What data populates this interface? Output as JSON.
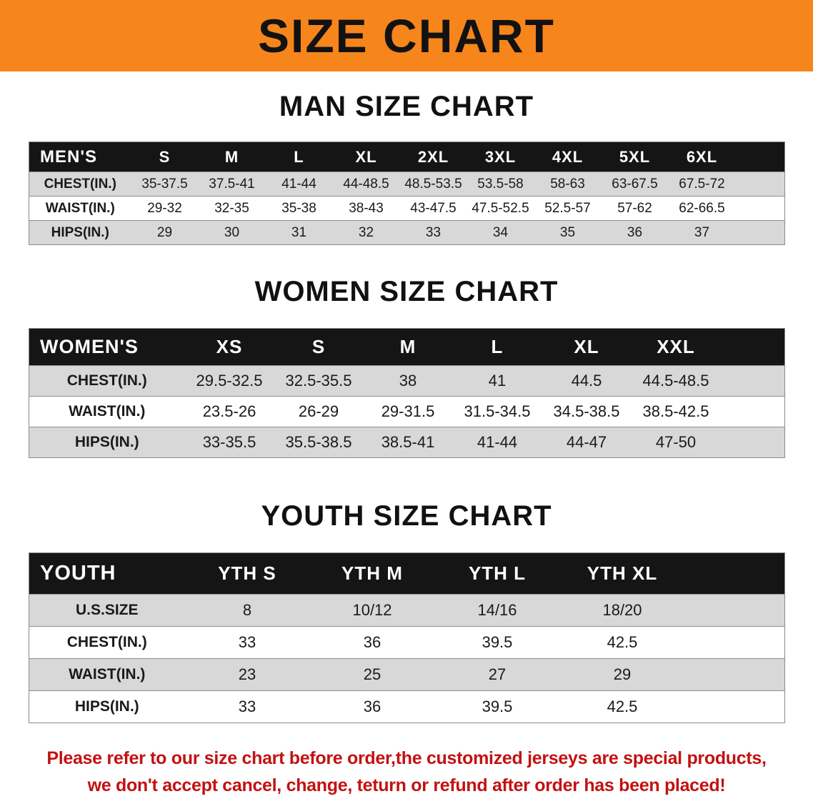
{
  "banner": {
    "title": "SIZE CHART",
    "bg_color": "#F6851C"
  },
  "colors": {
    "banner_orange": "#F6851C",
    "header_black": "#151515",
    "stripe_gray": "#D8D8D8",
    "disclaimer_red": "#C31111"
  },
  "sections": [
    {
      "heading": "MAN SIZE CHART",
      "table": {
        "label": "MEN'S",
        "columns": [
          "S",
          "M",
          "L",
          "XL",
          "2XL",
          "3XL",
          "4XL",
          "5XL",
          "6XL"
        ],
        "rows": [
          {
            "label": "CHEST(IN.)",
            "values": [
              "35-37.5",
              "37.5-41",
              "41-44",
              "44-48.5",
              "48.5-53.5",
              "53.5-58",
              "58-63",
              "63-67.5",
              "67.5-72"
            ]
          },
          {
            "label": "WAIST(IN.)",
            "values": [
              "29-32",
              "32-35",
              "35-38",
              "38-43",
              "43-47.5",
              "47.5-52.5",
              "52.5-57",
              "57-62",
              "62-66.5"
            ]
          },
          {
            "label": "HIPS(IN.)",
            "values": [
              "29",
              "30",
              "31",
              "32",
              "33",
              "34",
              "35",
              "36",
              "37"
            ]
          }
        ]
      }
    },
    {
      "heading": "WOMEN SIZE CHART",
      "table": {
        "label": "WOMEN'S",
        "columns": [
          "XS",
          "S",
          "M",
          "L",
          "XL",
          "XXL"
        ],
        "rows": [
          {
            "label": "CHEST(IN.)",
            "values": [
              "29.5-32.5",
              "32.5-35.5",
              "38",
              "41",
              "44.5",
              "44.5-48.5"
            ]
          },
          {
            "label": "WAIST(IN.)",
            "values": [
              "23.5-26",
              "26-29",
              "29-31.5",
              "31.5-34.5",
              "34.5-38.5",
              "38.5-42.5"
            ]
          },
          {
            "label": "HIPS(IN.)",
            "values": [
              "33-35.5",
              "35.5-38.5",
              "38.5-41",
              "41-44",
              "44-47",
              "47-50"
            ]
          }
        ]
      }
    },
    {
      "heading": "YOUTH SIZE CHART",
      "table": {
        "label": "YOUTH",
        "columns": [
          "YTH S",
          "YTH M",
          "YTH L",
          "YTH XL"
        ],
        "rows": [
          {
            "label": "U.S.SIZE",
            "values": [
              "8",
              "10/12",
              "14/16",
              "18/20"
            ]
          },
          {
            "label": "CHEST(IN.)",
            "values": [
              "33",
              "36",
              "39.5",
              "42.5"
            ]
          },
          {
            "label": "WAIST(IN.)",
            "values": [
              "23",
              "25",
              "27",
              "29"
            ]
          },
          {
            "label": "HIPS(IN.)",
            "values": [
              "33",
              "36",
              "39.5",
              "42.5"
            ]
          }
        ]
      }
    }
  ],
  "disclaimer": {
    "color": "#C31111",
    "line1": "Please refer to our size chart before order,the customized jerseys are special products,",
    "line2": "we don't accept cancel, change, teturn or refund after order has been placed!"
  }
}
